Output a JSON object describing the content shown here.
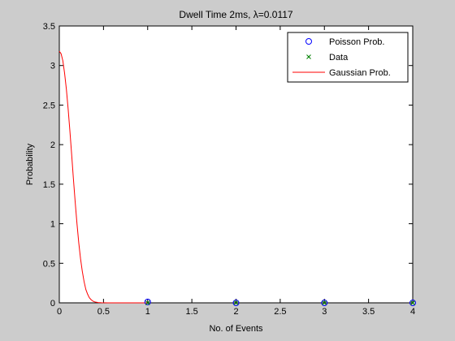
{
  "chart_data": {
    "type": "line",
    "title": "Dwell Time 2ms, λ=0.0117",
    "xlabel": "No. of Events",
    "ylabel": "Probability",
    "xlim": [
      0,
      4
    ],
    "ylim": [
      0,
      3.5
    ],
    "xticks": [
      "0",
      "0.5",
      "1",
      "1.5",
      "2",
      "2.5",
      "3",
      "3.5",
      "4"
    ],
    "yticks": [
      "0",
      "0.5",
      "1",
      "1.5",
      "2",
      "2.5",
      "3",
      "3.5"
    ],
    "xtick_values": [
      0,
      0.5,
      1,
      1.5,
      2,
      2.5,
      3,
      3.5,
      4
    ],
    "ytick_values": [
      0,
      0.5,
      1,
      1.5,
      2,
      2.5,
      3,
      3.5
    ],
    "grid": false,
    "legend_position": "top-right",
    "legend": [
      "Poisson Prob.",
      "Data",
      "Gaussian Prob."
    ],
    "series": [
      {
        "name": "Poisson Prob.",
        "kind": "markers-circle",
        "color": "#0000ff",
        "x": [
          1,
          2,
          3,
          4
        ],
        "y": [
          0.0115,
          0.0001,
          0.0,
          0.0
        ]
      },
      {
        "name": "Data",
        "kind": "markers-x",
        "color": "#008000",
        "x": [
          1,
          2,
          3,
          4
        ],
        "y": [
          0.0,
          0.0,
          0.0,
          0.0
        ]
      },
      {
        "name": "Gaussian Prob.",
        "kind": "line",
        "color": "#ff0000",
        "x": [
          0,
          0.02,
          0.04,
          0.06,
          0.08,
          0.1,
          0.12,
          0.14,
          0.16,
          0.18,
          0.2,
          0.22,
          0.24,
          0.26,
          0.28,
          0.3,
          0.32,
          0.34,
          0.36,
          0.38,
          0.4,
          0.44,
          0.48,
          0.55,
          0.7,
          1.0
        ],
        "y": [
          3.18,
          3.15,
          3.06,
          2.9,
          2.7,
          2.45,
          2.17,
          1.87,
          1.56,
          1.27,
          1.0,
          0.76,
          0.56,
          0.4,
          0.27,
          0.17,
          0.11,
          0.065,
          0.04,
          0.022,
          0.012,
          0.004,
          0.001,
          0.0,
          0.0,
          0.0
        ]
      }
    ]
  }
}
